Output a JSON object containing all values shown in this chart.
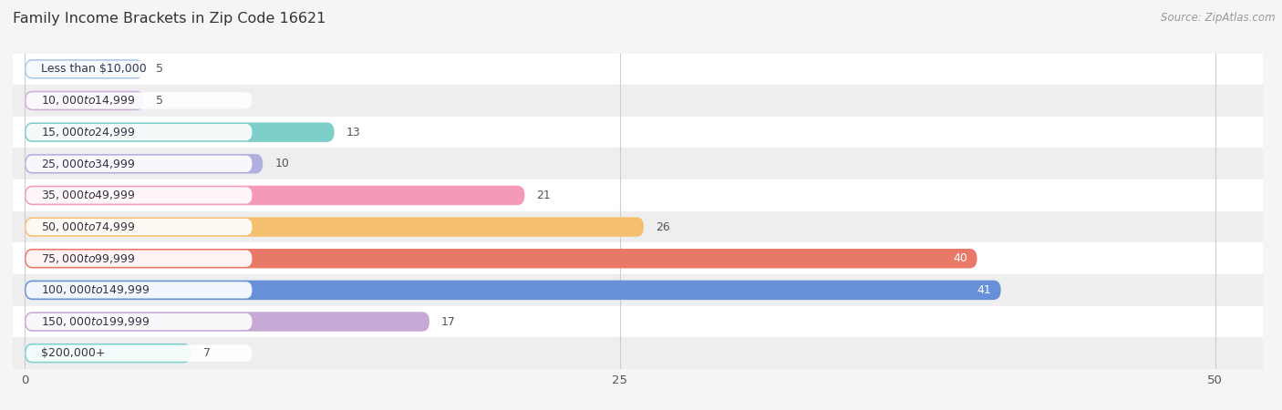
{
  "title": "Family Income Brackets in Zip Code 16621",
  "source": "Source: ZipAtlas.com",
  "categories": [
    "Less than $10,000",
    "$10,000 to $14,999",
    "$15,000 to $24,999",
    "$25,000 to $34,999",
    "$35,000 to $49,999",
    "$50,000 to $74,999",
    "$75,000 to $99,999",
    "$100,000 to $149,999",
    "$150,000 to $199,999",
    "$200,000+"
  ],
  "values": [
    5,
    5,
    13,
    10,
    21,
    26,
    40,
    41,
    17,
    7
  ],
  "bar_colors": [
    "#a8c8e8",
    "#cdb0d8",
    "#7ececa",
    "#b0b0e0",
    "#f49ab8",
    "#f4c070",
    "#e87868",
    "#6890d8",
    "#c8a8d4",
    "#80d0d0"
  ],
  "xlim": [
    -0.5,
    52
  ],
  "xticks": [
    0,
    25,
    50
  ],
  "bar_height": 0.62,
  "bg_color": "#f5f5f5",
  "row_colors": [
    "#ffffff",
    "#eeeeee"
  ],
  "label_fontsize": 9.0,
  "value_fontsize": 9.0,
  "title_fontsize": 11.5,
  "source_fontsize": 8.5,
  "label_bg_color": "#ffffff"
}
